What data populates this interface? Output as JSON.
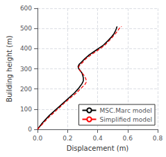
{
  "chart_data": {
    "type": "line",
    "xlabel": "Displacement (m)",
    "ylabel": "Building height (m)",
    "xlim": [
      0,
      0.8
    ],
    "ylim": [
      0,
      600
    ],
    "xticks": [
      {
        "value": 0,
        "label": "0.0"
      },
      0.2,
      0.4,
      0.6,
      0.8
    ],
    "yticks": [
      0,
      100,
      200,
      300,
      400,
      500,
      600
    ],
    "grid": true,
    "legend": "lower right",
    "series": [
      {
        "name": "MSC.Marc model",
        "color": "#000000",
        "line_style": "solid",
        "x": [
          0,
          0.01,
          0.02,
          0.03,
          0.055,
          0.08,
          0.125,
          0.17,
          0.215,
          0.245,
          0.27,
          0.285,
          0.295,
          0.305,
          0.305,
          0.3,
          0.295,
          0.285,
          0.275,
          0.27,
          0.275,
          0.295,
          0.315,
          0.345,
          0.385,
          0.435,
          0.47,
          0.495,
          0.51,
          0.52,
          0.525,
          0.527,
          0.53
        ],
        "values": [
          0,
          10,
          20,
          30,
          50,
          70,
          100,
          130,
          160,
          180,
          200,
          215,
          225,
          240,
          255,
          270,
          280,
          290,
          300,
          310,
          320,
          335,
          350,
          370,
          390,
          415,
          440,
          460,
          475,
          490,
          500,
          505,
          510
        ]
      },
      {
        "name": "Simplified model",
        "color": "#ff0000",
        "line_style": "dashed",
        "x": [
          0,
          0.012,
          0.025,
          0.038,
          0.062,
          0.09,
          0.135,
          0.178,
          0.225,
          0.258,
          0.285,
          0.305,
          0.318,
          0.325,
          0.322,
          0.312,
          0.302,
          0.29,
          0.278,
          0.272,
          0.278,
          0.298,
          0.322,
          0.358,
          0.398,
          0.445,
          0.478,
          0.502,
          0.52,
          0.535,
          0.545,
          0.55,
          0.56
        ],
        "values": [
          0,
          10,
          20,
          30,
          50,
          70,
          100,
          130,
          160,
          180,
          200,
          215,
          225,
          235,
          250,
          265,
          275,
          285,
          295,
          305,
          315,
          330,
          350,
          370,
          390,
          415,
          440,
          460,
          475,
          490,
          500,
          505,
          510
        ]
      }
    ]
  }
}
